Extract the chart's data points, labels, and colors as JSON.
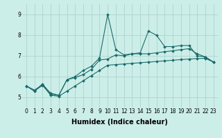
{
  "xlabel": "Humidex (Indice chaleur)",
  "bg_color": "#cceee8",
  "grid_color": "#aacccc",
  "line_color": "#1a6b6b",
  "xlim": [
    -0.5,
    23.5
  ],
  "ylim": [
    4.5,
    9.5
  ],
  "xticks": [
    0,
    1,
    2,
    3,
    4,
    5,
    6,
    7,
    8,
    9,
    10,
    11,
    12,
    13,
    14,
    15,
    16,
    17,
    18,
    19,
    20,
    21,
    22,
    23
  ],
  "yticks": [
    5,
    6,
    7,
    8,
    9
  ],
  "series0_x": [
    0,
    1,
    2,
    3,
    4,
    5,
    6,
    7,
    8,
    9,
    10,
    11,
    12,
    13,
    14,
    15,
    16,
    17,
    18,
    19,
    20,
    21,
    22,
    23
  ],
  "series0_y": [
    5.55,
    5.3,
    5.65,
    5.15,
    5.1,
    5.85,
    6.0,
    6.3,
    6.5,
    6.9,
    9.0,
    7.3,
    7.05,
    7.1,
    7.15,
    8.2,
    8.0,
    7.45,
    7.45,
    7.5,
    7.5,
    7.0,
    6.95,
    6.7
  ],
  "series1_x": [
    0,
    1,
    2,
    3,
    4,
    5,
    6,
    7,
    8,
    9,
    10,
    11,
    12,
    13,
    14,
    15,
    16,
    17,
    18,
    19,
    20,
    21,
    22,
    23
  ],
  "series1_y": [
    5.55,
    5.35,
    5.6,
    5.2,
    5.1,
    5.85,
    5.95,
    6.1,
    6.35,
    6.8,
    6.85,
    7.05,
    7.0,
    7.1,
    7.1,
    7.1,
    7.15,
    7.2,
    7.25,
    7.3,
    7.35,
    7.1,
    6.95,
    6.7
  ],
  "series2_x": [
    0,
    1,
    2,
    3,
    4,
    5,
    6,
    7,
    8,
    9,
    10,
    11,
    12,
    13,
    14,
    15,
    16,
    17,
    18,
    19,
    20,
    21,
    22,
    23
  ],
  "series2_y": [
    5.55,
    5.3,
    5.58,
    5.1,
    5.05,
    5.3,
    5.55,
    5.8,
    6.05,
    6.3,
    6.55,
    6.58,
    6.61,
    6.64,
    6.67,
    6.7,
    6.73,
    6.76,
    6.79,
    6.82,
    6.85,
    6.87,
    6.88,
    6.7
  ],
  "markersize": 2.0,
  "linewidth": 0.8,
  "xlabel_fontsize": 7,
  "tick_fontsize": 5.5
}
